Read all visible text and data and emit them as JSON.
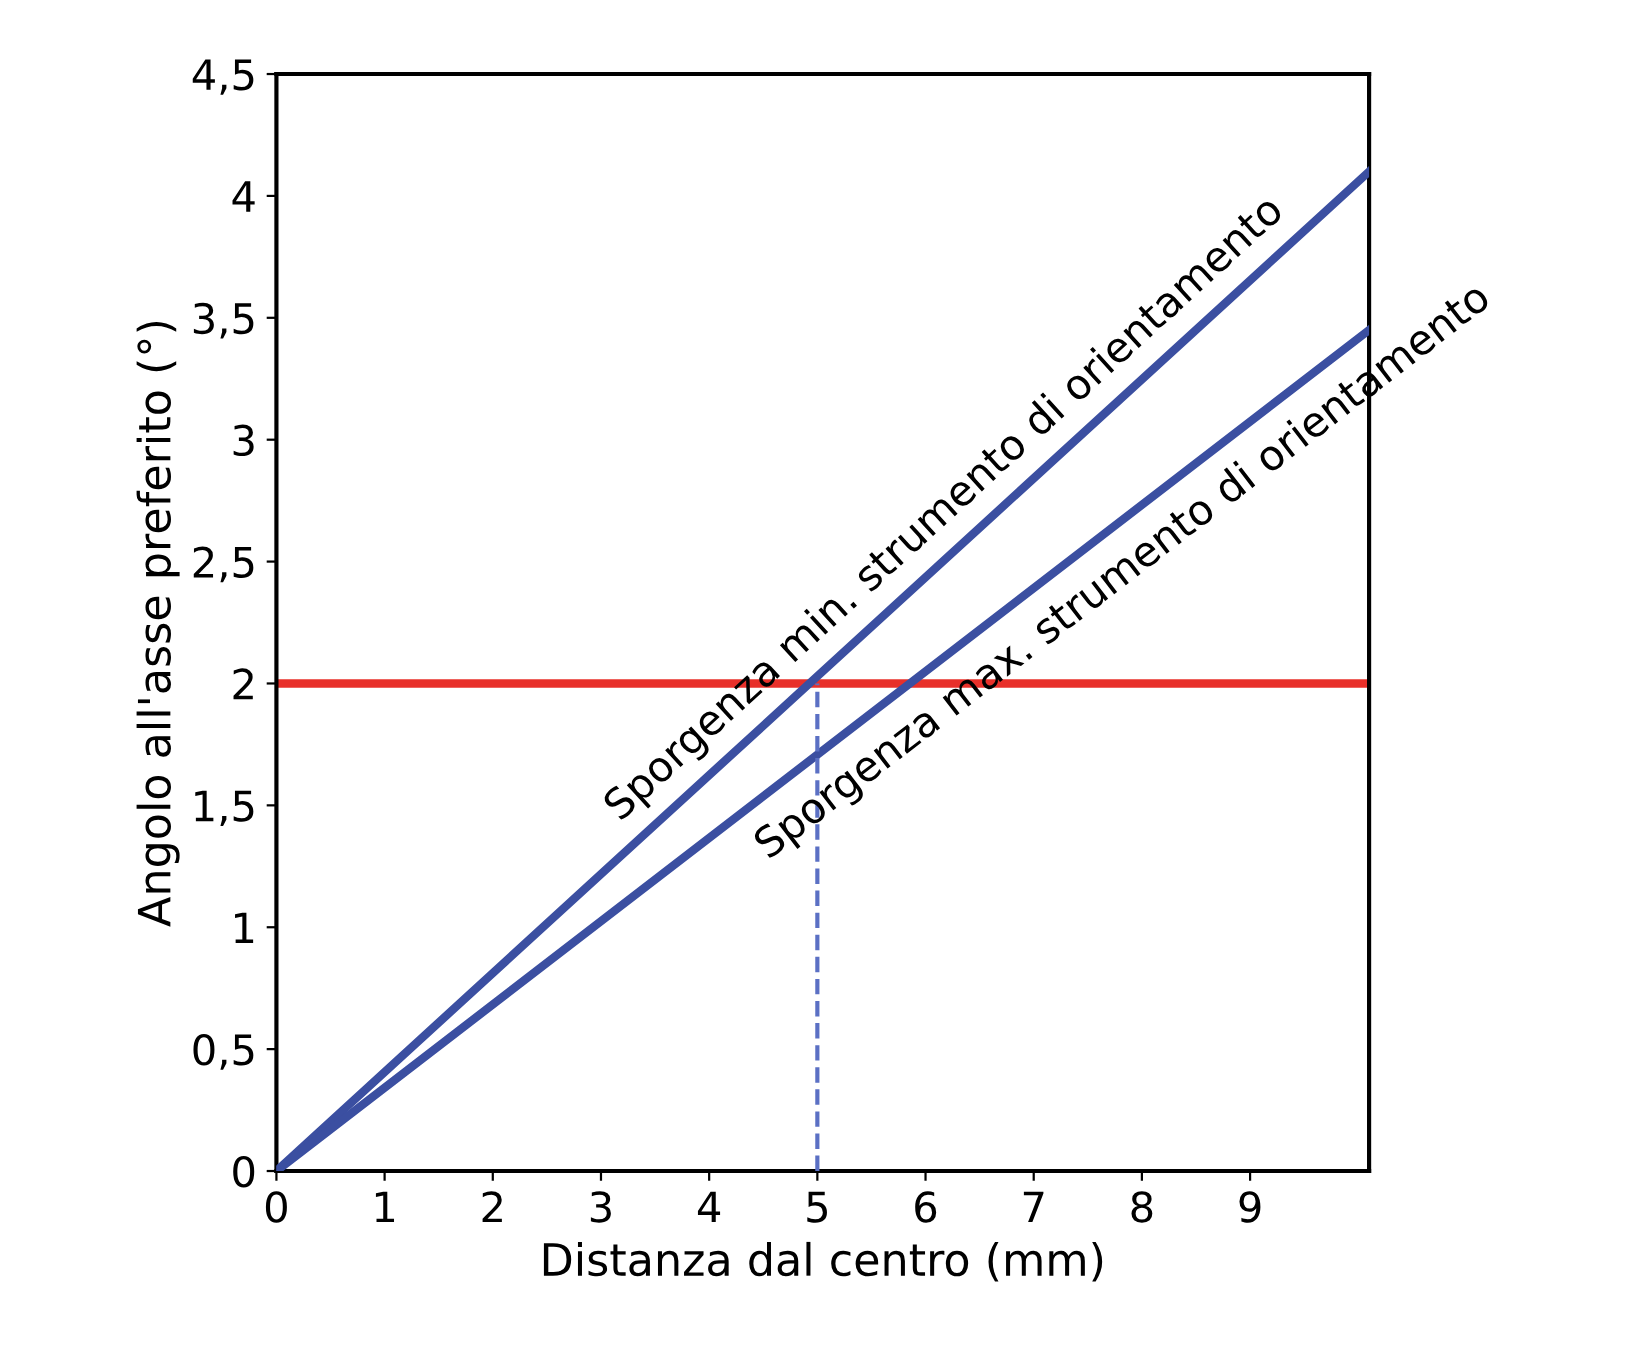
{
  "chart_data": {
    "type": "line",
    "xlabel": "Distanza dal centro (mm)",
    "ylabel": "Angolo all'asse preferito (°)",
    "xlim": [
      0,
      10.1
    ],
    "ylim": [
      0,
      4.5
    ],
    "xticks": [
      0,
      1,
      2,
      3,
      4,
      5,
      6,
      7,
      8,
      9
    ],
    "yticks": [
      0,
      {
        "value": 0.5,
        "label": "0,5"
      },
      1,
      {
        "value": 1.5,
        "label": "1,5"
      },
      2,
      {
        "value": 2.5,
        "label": "2,5"
      },
      3,
      {
        "value": 3.5,
        "label": "3,5"
      },
      4,
      {
        "value": 4.5,
        "label": "4,5"
      }
    ],
    "series": [
      {
        "name": "Sporgenza min. strumento di orientamento",
        "color": "#3b4fa1",
        "x": [
          0,
          10.1
        ],
        "values": [
          0,
          4.1
        ]
      },
      {
        "name": "Sporgenza max. strumento di orientamento",
        "color": "#3b4fa1",
        "x": [
          0,
          10.1
        ],
        "values": [
          0,
          3.45
        ]
      },
      {
        "color": "#5b70c4",
        "x": [
          5,
          5
        ],
        "values": [
          0,
          2
        ],
        "line_style": "dashed"
      }
    ],
    "ref_lines": [
      {
        "axis": "y",
        "value": 2,
        "color": "#e8302a"
      }
    ],
    "grid": false,
    "legend": false
  }
}
